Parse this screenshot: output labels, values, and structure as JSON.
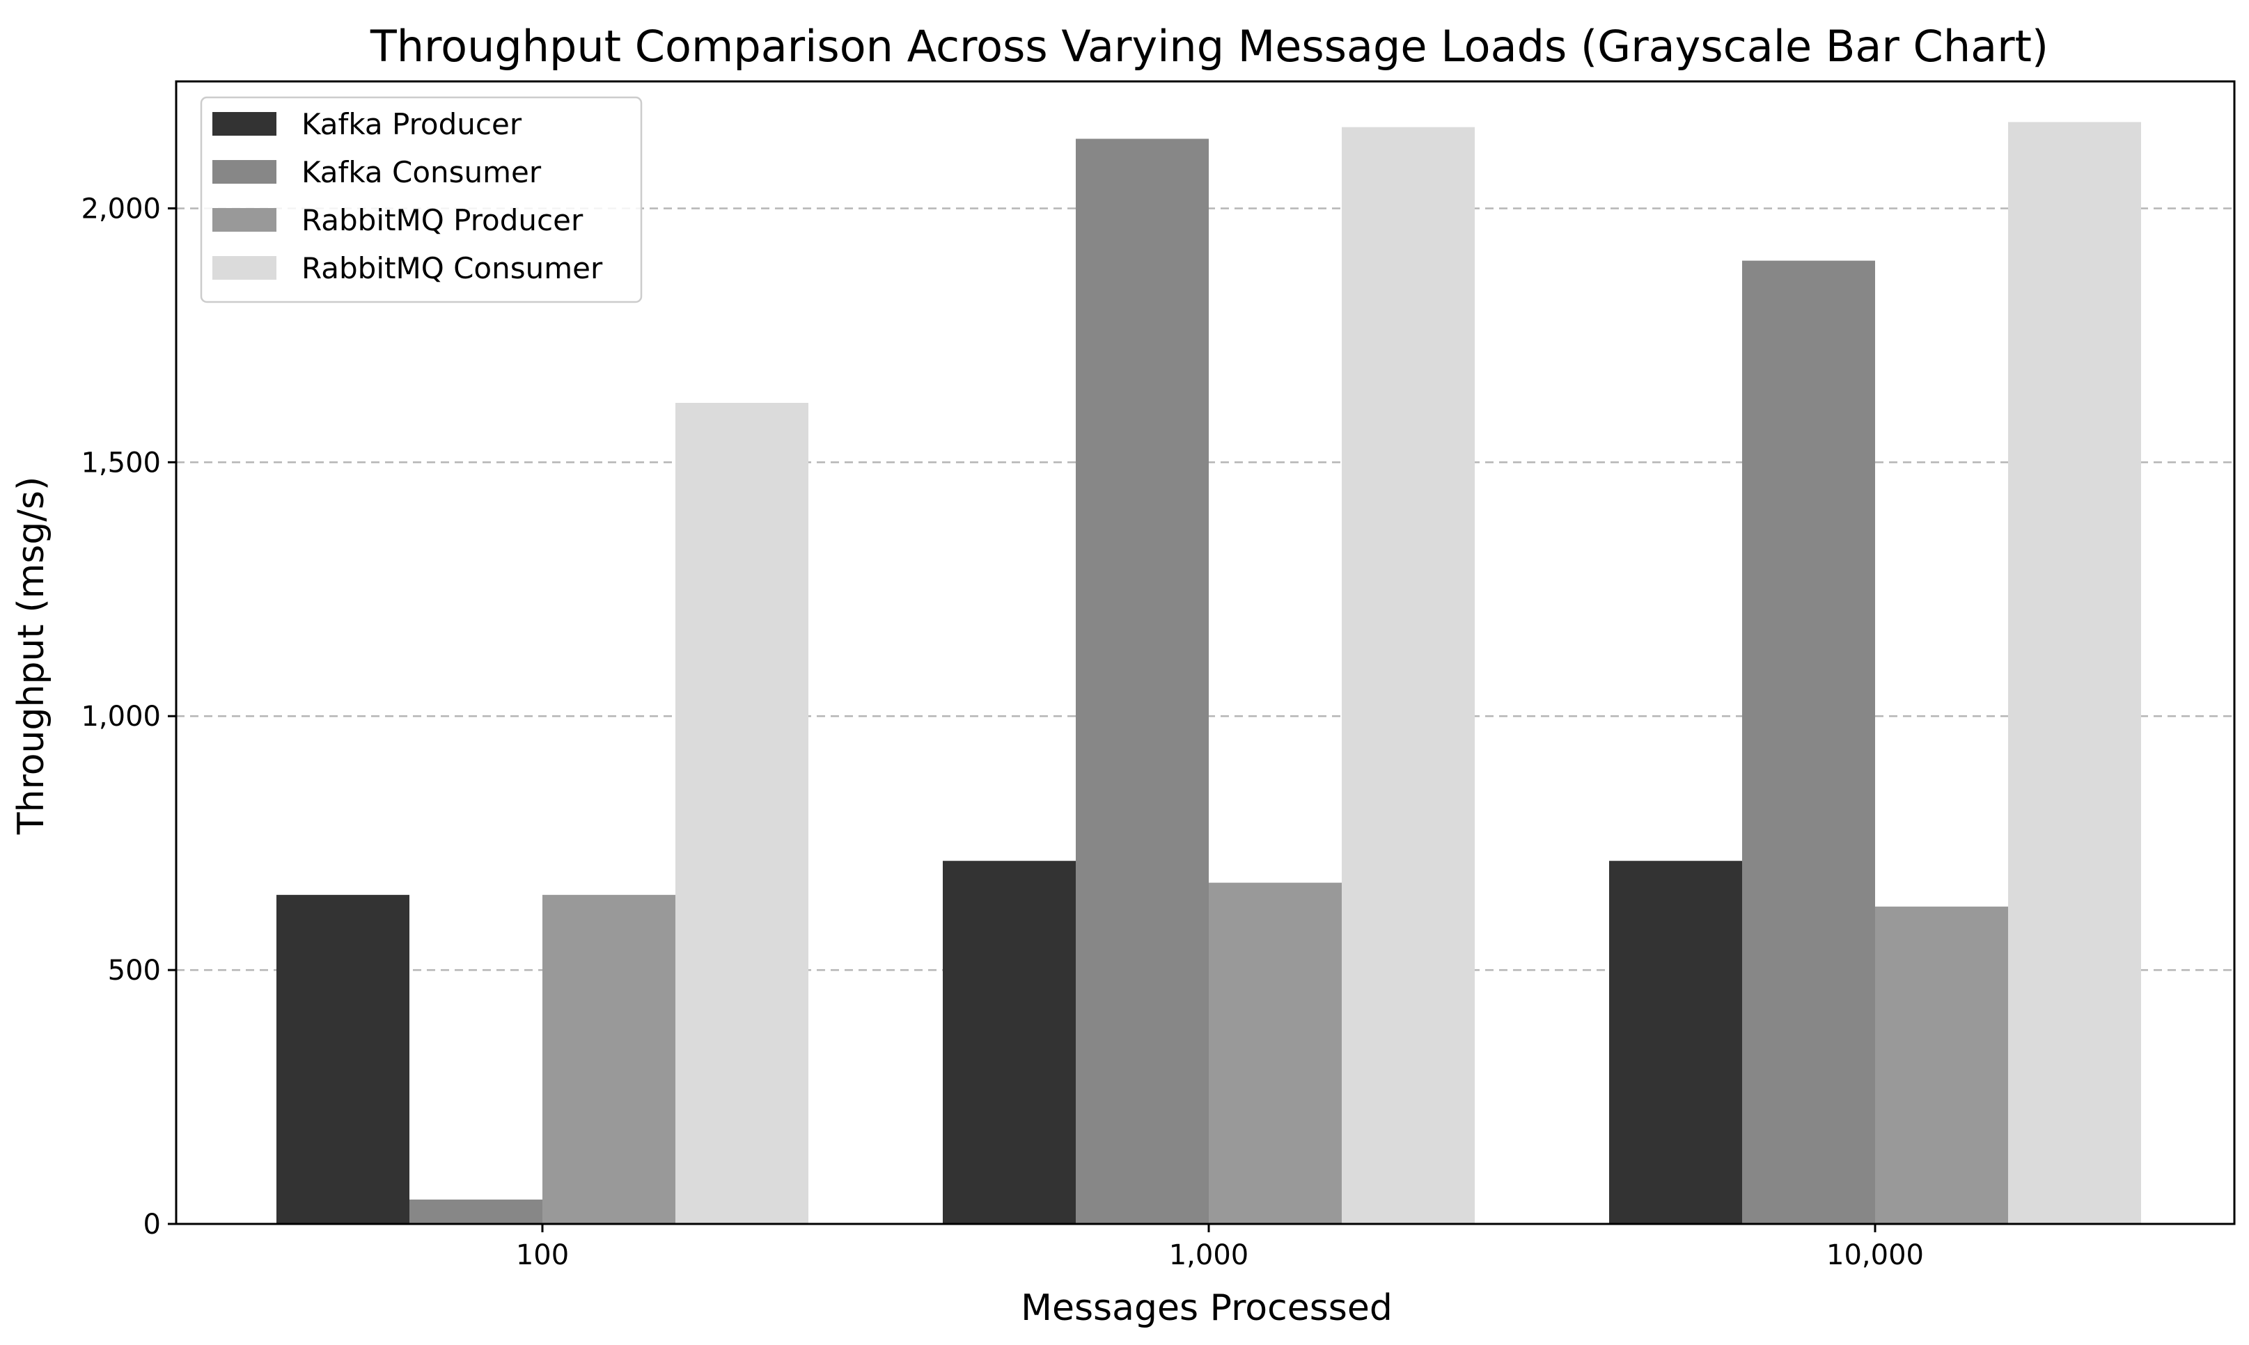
{
  "chart_data": {
    "type": "bar",
    "title": "Throughput Comparison Across Varying Message Loads (Grayscale Bar Chart)",
    "xlabel": "Messages Processed",
    "ylabel": "Throughput (msg/s)",
    "categories": [
      "100",
      "1,000",
      "10,000"
    ],
    "ylim": [
      0,
      2250
    ],
    "yticks": [
      0,
      500,
      1000,
      1500,
      2000
    ],
    "ytick_labels": [
      "0",
      "500",
      "1,000",
      "1,500",
      "2,000"
    ],
    "grid": "y-dashed",
    "legend_position": "upper-left",
    "series": [
      {
        "name": "Kafka Producer",
        "color": "#333333",
        "values": [
          648,
          715,
          715
        ]
      },
      {
        "name": "Kafka Consumer",
        "color": "#878787",
        "values": [
          48,
          2137,
          1897
        ]
      },
      {
        "name": "RabbitMQ Producer",
        "color": "#999999",
        "values": [
          648,
          672,
          625
        ]
      },
      {
        "name": "RabbitMQ Consumer",
        "color": "#dbdbdb",
        "values": [
          1617,
          2160,
          2170
        ]
      }
    ]
  }
}
